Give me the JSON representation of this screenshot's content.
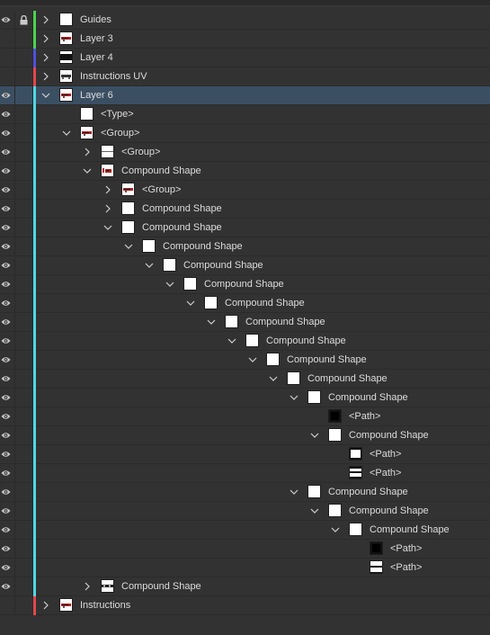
{
  "panel": {
    "colors": {
      "green": "#4bd34b",
      "blue": "#5050dc",
      "red": "#e2474b",
      "cyan": "#4fd8e6",
      "selected_bg": "#3b4f63"
    },
    "rows": [
      {
        "label": "Guides",
        "depth": 0,
        "expander": "collapsed",
        "visible": true,
        "locked": true,
        "color": "#4bd34b",
        "thumb": "blank",
        "selected": false
      },
      {
        "label": "Layer 3",
        "depth": 0,
        "expander": "collapsed",
        "visible": false,
        "locked": false,
        "color": "#4bd34b",
        "thumb": "art-red",
        "selected": false
      },
      {
        "label": "Layer 4",
        "depth": 0,
        "expander": "collapsed",
        "visible": false,
        "locked": false,
        "color": "#5050dc",
        "thumb": "black-bar",
        "selected": false
      },
      {
        "label": "Instructions UV",
        "depth": 0,
        "expander": "collapsed",
        "visible": false,
        "locked": false,
        "color": "#e2474b",
        "thumb": "art-dark",
        "selected": false
      },
      {
        "label": "Layer 6",
        "depth": 0,
        "expander": "expanded",
        "visible": true,
        "locked": false,
        "color": "#4fd8e6",
        "thumb": "art-red",
        "selected": true
      },
      {
        "label": "<Type>",
        "depth": 1,
        "expander": "none",
        "visible": true,
        "locked": false,
        "color": "#4fd8e6",
        "thumb": "blank",
        "selected": false
      },
      {
        "label": "<Group>",
        "depth": 1,
        "expander": "expanded",
        "visible": true,
        "locked": false,
        "color": "#4fd8e6",
        "thumb": "art-red",
        "selected": false
      },
      {
        "label": "<Group>",
        "depth": 2,
        "expander": "collapsed",
        "visible": true,
        "locked": false,
        "color": "#4fd8e6",
        "thumb": "dots",
        "selected": false
      },
      {
        "label": "Compound Shape",
        "depth": 2,
        "expander": "expanded",
        "visible": true,
        "locked": false,
        "color": "#4fd8e6",
        "thumb": "art-red-small",
        "selected": false
      },
      {
        "label": "<Group>",
        "depth": 3,
        "expander": "collapsed",
        "visible": true,
        "locked": false,
        "color": "#4fd8e6",
        "thumb": "art-red",
        "selected": false
      },
      {
        "label": "Compound Shape",
        "depth": 3,
        "expander": "collapsed",
        "visible": true,
        "locked": false,
        "color": "#4fd8e6",
        "thumb": "blank",
        "selected": false
      },
      {
        "label": "Compound Shape",
        "depth": 3,
        "expander": "expanded",
        "visible": true,
        "locked": false,
        "color": "#4fd8e6",
        "thumb": "blank",
        "selected": false
      },
      {
        "label": "Compound Shape",
        "depth": 4,
        "expander": "expanded",
        "visible": true,
        "locked": false,
        "color": "#4fd8e6",
        "thumb": "blank",
        "selected": false
      },
      {
        "label": "Compound Shape",
        "depth": 5,
        "expander": "expanded",
        "visible": true,
        "locked": false,
        "color": "#4fd8e6",
        "thumb": "blank",
        "selected": false
      },
      {
        "label": "Compound Shape",
        "depth": 6,
        "expander": "expanded",
        "visible": true,
        "locked": false,
        "color": "#4fd8e6",
        "thumb": "blank",
        "selected": false
      },
      {
        "label": "Compound Shape",
        "depth": 7,
        "expander": "expanded",
        "visible": true,
        "locked": false,
        "color": "#4fd8e6",
        "thumb": "blank",
        "selected": false
      },
      {
        "label": "Compound Shape",
        "depth": 8,
        "expander": "expanded",
        "visible": true,
        "locked": false,
        "color": "#4fd8e6",
        "thumb": "blank",
        "selected": false
      },
      {
        "label": "Compound Shape",
        "depth": 9,
        "expander": "expanded",
        "visible": true,
        "locked": false,
        "color": "#4fd8e6",
        "thumb": "blank",
        "selected": false
      },
      {
        "label": "Compound Shape",
        "depth": 10,
        "expander": "expanded",
        "visible": true,
        "locked": false,
        "color": "#4fd8e6",
        "thumb": "blank",
        "selected": false
      },
      {
        "label": "Compound Shape",
        "depth": 11,
        "expander": "expanded",
        "visible": true,
        "locked": false,
        "color": "#4fd8e6",
        "thumb": "blank",
        "selected": false
      },
      {
        "label": "Compound Shape",
        "depth": 12,
        "expander": "expanded",
        "visible": true,
        "locked": false,
        "color": "#4fd8e6",
        "thumb": "blank",
        "selected": false
      },
      {
        "label": "<Path>",
        "depth": 13,
        "expander": "none",
        "visible": true,
        "locked": false,
        "color": "#4fd8e6",
        "thumb": "black-square",
        "selected": false
      },
      {
        "label": "Compound Shape",
        "depth": 13,
        "expander": "expanded",
        "visible": true,
        "locked": false,
        "color": "#4fd8e6",
        "thumb": "blank",
        "selected": false
      },
      {
        "label": "<Path>",
        "depth": 14,
        "expander": "none",
        "visible": true,
        "locked": false,
        "color": "#4fd8e6",
        "thumb": "frame-a",
        "selected": false
      },
      {
        "label": "<Path>",
        "depth": 14,
        "expander": "none",
        "visible": true,
        "locked": false,
        "color": "#4fd8e6",
        "thumb": "frame-b",
        "selected": false
      },
      {
        "label": "Compound Shape",
        "depth": 12,
        "expander": "expanded",
        "visible": true,
        "locked": false,
        "color": "#4fd8e6",
        "thumb": "blank",
        "selected": false
      },
      {
        "label": "Compound Shape",
        "depth": 13,
        "expander": "expanded",
        "visible": true,
        "locked": false,
        "color": "#4fd8e6",
        "thumb": "blank",
        "selected": false
      },
      {
        "label": "Compound Shape",
        "depth": 14,
        "expander": "expanded",
        "visible": true,
        "locked": false,
        "color": "#4fd8e6",
        "thumb": "blank",
        "selected": false
      },
      {
        "label": "<Path>",
        "depth": 15,
        "expander": "none",
        "visible": true,
        "locked": false,
        "color": "#4fd8e6",
        "thumb": "black-square",
        "selected": false
      },
      {
        "label": "<Path>",
        "depth": 15,
        "expander": "none",
        "visible": true,
        "locked": false,
        "color": "#4fd8e6",
        "thumb": "frame-c",
        "selected": false
      },
      {
        "label": "Compound Shape",
        "depth": 2,
        "expander": "collapsed",
        "visible": true,
        "locked": false,
        "color": "#4fd8e6",
        "thumb": "dark-dots",
        "selected": false
      },
      {
        "label": "Instructions",
        "depth": 0,
        "expander": "collapsed",
        "visible": false,
        "locked": false,
        "color": "#e2474b",
        "thumb": "art-red",
        "selected": false
      }
    ]
  }
}
